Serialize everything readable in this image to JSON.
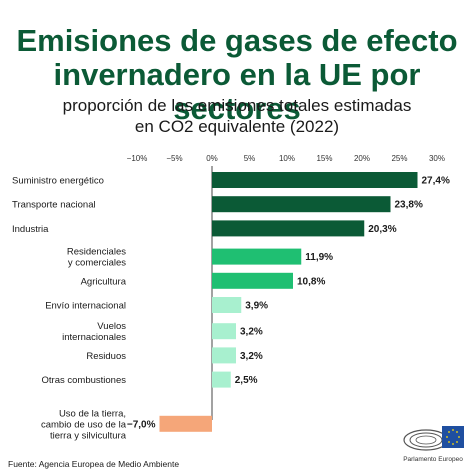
{
  "chart_data": {
    "type": "bar",
    "orientation": "horizontal",
    "title": "Emisiones de gases de efecto invernadero en la UE por sectores",
    "subtitle_lines": [
      "proporción de las emisiones totales estimadas",
      "en CO2 equivalente (2022)"
    ],
    "xlim": [
      -10,
      30
    ],
    "ticks": [
      -10,
      -5,
      0,
      5,
      10,
      15,
      20,
      25,
      30
    ],
    "tick_labels": [
      "−10%",
      "−5%",
      "0%",
      "5%",
      "10%",
      "15%",
      "20%",
      "25%",
      "30%"
    ],
    "grid": false,
    "categories": [
      [
        "Suministro energético"
      ],
      [
        "Transporte nacional"
      ],
      [
        "Industria"
      ],
      [
        "Residenciales",
        "y comerciales"
      ],
      [
        "Agricultura"
      ],
      [
        "Envío internacional"
      ],
      [
        "Vuelos",
        "internacionales"
      ],
      [
        "Residuos"
      ],
      [
        "Otras combustiones"
      ],
      [
        "Uso de la tierra,",
        "cambio de uso de la",
        "tierra y silvicultura"
      ]
    ],
    "values": [
      27.4,
      23.8,
      20.3,
      11.9,
      10.8,
      3.9,
      3.2,
      3.2,
      2.5,
      -7.0
    ],
    "value_labels": [
      "27,4%",
      "23,8%",
      "20,3%",
      "11,9%",
      "10,8%",
      "3,9%",
      "3,2%",
      "3,2%",
      "2,5%",
      "−7,0%"
    ],
    "colors": [
      "#0b5a36",
      "#0b5a36",
      "#0b5a36",
      "#1fbf72",
      "#1fbf72",
      "#a8f0cf",
      "#a8f0cf",
      "#a8f0cf",
      "#a8f0cf",
      "#f5a679"
    ]
  },
  "source": "Fuente: Agencia Europea de Medio Ambiente",
  "logo": {
    "icon": "european-parliament-logo",
    "text": "Parlamento Europeo"
  }
}
